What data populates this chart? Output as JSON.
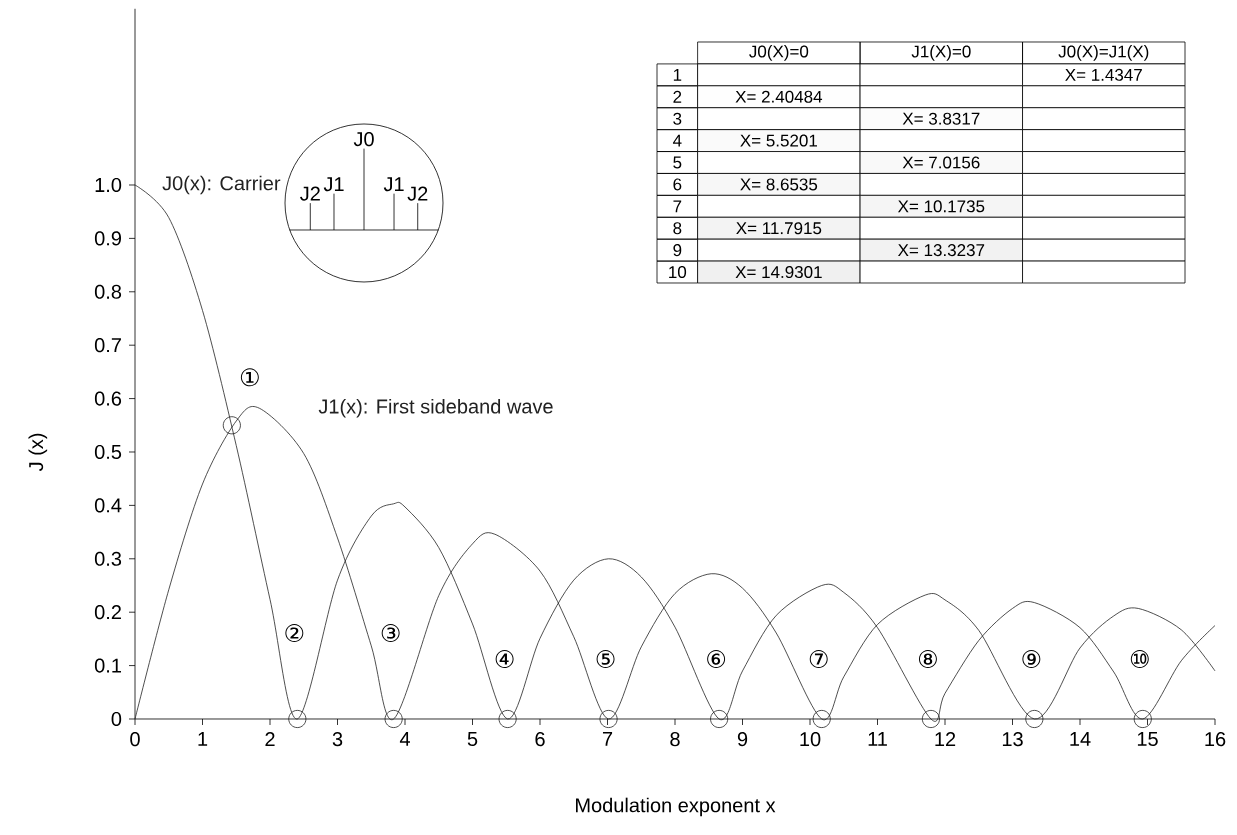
{
  "chart_data": [
    {
      "type": "line",
      "xlabel": "Modulation exponent x",
      "ylabel": "J (x)",
      "xlim": [
        0,
        16
      ],
      "ylim": [
        0,
        1.33
      ],
      "xticks": [
        0,
        1,
        2,
        3,
        4,
        5,
        6,
        7,
        8,
        9,
        10,
        11,
        12,
        13,
        14,
        15,
        16
      ],
      "yticks": [
        0,
        0.1,
        0.2,
        0.3,
        0.4,
        0.5,
        0.6,
        0.7,
        0.8,
        0.9,
        {
          "value": 1,
          "label": "1.0"
        }
      ],
      "series": [
        {
          "name": "J0(x): Carrier",
          "color": "#222222",
          "x": [
            0,
            0.5,
            1,
            1.5,
            2,
            2.40484,
            3,
            3.5,
            3.8317,
            4,
            4.5,
            5,
            5.5201,
            6,
            6.5,
            7.0156,
            7.5,
            8,
            8.6535,
            9,
            9.5,
            10.1735,
            10.5,
            11,
            11.7915,
            12,
            12.5,
            13,
            13.3237,
            14,
            14.5,
            14.9301,
            15.5,
            16
          ],
          "values": [
            1,
            0.939,
            0.765,
            0.512,
            0.224,
            0,
            0.26,
            0.38,
            0.403,
            0.397,
            0.321,
            0.178,
            0,
            0.151,
            0.26,
            0.3,
            0.266,
            0.172,
            0,
            0.09,
            0.194,
            0.25,
            0.237,
            0.171,
            0,
            0.048,
            0.147,
            0.207,
            0.218,
            0.171,
            0.088,
            0,
            0.109,
            0.175
          ]
        },
        {
          "name": "J1(x): First sideband wave",
          "color": "#222222",
          "x": [
            0,
            0.5,
            1,
            1.5,
            1.8412,
            2.5,
            3,
            3.5,
            3.8317,
            4.5,
            5,
            5.3314,
            6,
            6.5,
            7.0156,
            7.5,
            8,
            8.5363,
            9,
            9.5,
            10.1735,
            10.5,
            11,
            11.706,
            12,
            12.5,
            13.3237,
            14,
            14.5,
            14.8636,
            15.5,
            16
          ],
          "values": [
            0,
            0.242,
            0.44,
            0.558,
            0.582,
            0.497,
            0.339,
            0.137,
            0,
            0.231,
            0.328,
            0.346,
            0.277,
            0.154,
            0,
            0.135,
            0.235,
            0.272,
            0.245,
            0.161,
            0,
            0.079,
            0.177,
            0.232,
            0.223,
            0.166,
            0,
            0.133,
            0.193,
            0.207,
            0.167,
            0.09
          ]
        },
        {
          "type": "scatter",
          "marker": "circle",
          "color": "#222222",
          "x": [
            1.4347,
            2.40484,
            3.8317,
            5.5201,
            7.0156,
            8.6535,
            10.1735,
            11.7915,
            13.3237,
            14.9301
          ],
          "values": [
            0.55,
            0,
            0,
            0,
            0,
            0,
            0,
            0,
            0,
            0
          ]
        }
      ],
      "annotations": [
        "①",
        "②",
        "③",
        "④",
        "⑤",
        "⑥",
        "⑦",
        "⑧",
        "⑨",
        "⑩",
        "J2",
        "J1",
        "J0",
        "J1",
        "J2"
      ]
    },
    {
      "type": "heatmap",
      "categories": [
        "J0(X)=0",
        "J1(X)=0",
        "J0(X)=J1(X)"
      ],
      "y_categories": [
        "1",
        "2",
        "3",
        "4",
        "5",
        "6",
        "7",
        "8",
        "9",
        "10"
      ],
      "cells": [
        [
          null,
          null,
          1.4347
        ],
        [
          2.40484,
          null,
          null
        ],
        [
          null,
          3.8317,
          null
        ],
        [
          5.5201,
          null,
          null
        ],
        [
          null,
          7.0156,
          null
        ],
        [
          8.6535,
          null,
          null
        ],
        [
          null,
          10.1735,
          null
        ],
        [
          11.7915,
          null,
          null
        ],
        [
          null,
          13.3237,
          null
        ],
        [
          14.9301,
          null,
          null
        ]
      ],
      "cell_labels": [
        [
          null,
          null,
          "X= 1.4347"
        ],
        [
          "X= 2.40484",
          null,
          null
        ],
        [
          null,
          "X= 3.8317",
          null
        ],
        [
          "X= 5.5201",
          null,
          null
        ],
        [
          null,
          "X= 7.0156",
          null
        ],
        [
          "X= 8.6535",
          null,
          null
        ],
        [
          null,
          "X= 10.1735",
          null
        ],
        [
          "X= 11.7915",
          null,
          null
        ],
        [
          null,
          "X= 13.3237",
          null
        ],
        [
          "X= 14.9301",
          null,
          null
        ]
      ]
    }
  ]
}
